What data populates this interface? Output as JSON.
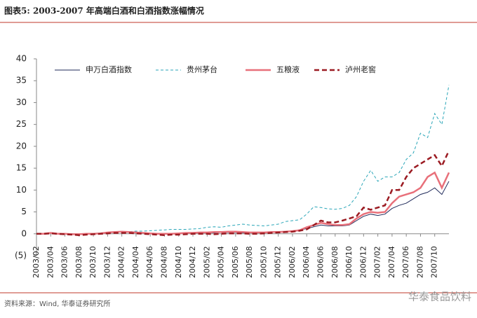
{
  "chart_data": {
    "type": "line",
    "title": "图表5:  2003-2007 年高端白酒和白酒指数涨幅情况",
    "source": "资料来源：Wind, 华泰证券研究所",
    "watermark": "华泰食品饮料",
    "categories": [
      "2003/02",
      null,
      "2003/04",
      null,
      "2003/06",
      null,
      "2003/08",
      null,
      "2003/10",
      null,
      "2003/12",
      null,
      "2004/02",
      null,
      "2004/04",
      null,
      "2004/06",
      null,
      "2004/08",
      null,
      "2004/10",
      null,
      "2004/12",
      null,
      "2005/02",
      null,
      "2005/04",
      null,
      "2005/06",
      null,
      "2005/08",
      null,
      "2005/10",
      null,
      "2005/12",
      null,
      "2006/02",
      null,
      "2006/04",
      null,
      "2006/06",
      null,
      "2006/08",
      null,
      "2006/10",
      null,
      "2006/12",
      null,
      "2007/02",
      null,
      "2007/04",
      null,
      "2007/06",
      null,
      "2007/08",
      null,
      "2007/10",
      null,
      null
    ],
    "series": [
      {
        "name": "申万白酒指数",
        "color": "#1f2a5a",
        "line_style": "solid",
        "values": [
          0,
          0,
          0.2,
          0.1,
          0,
          -0.1,
          -0.2,
          -0.1,
          0,
          0.1,
          0.2,
          0.3,
          0.4,
          0.3,
          0.3,
          0.2,
          0.1,
          0,
          0,
          0.1,
          0.1,
          0.2,
          0.2,
          0.3,
          0.3,
          0.2,
          0.3,
          0.3,
          0.3,
          0.2,
          0.2,
          0.3,
          0.3,
          0.4,
          0.4,
          0.5,
          0.6,
          0.8,
          1.2,
          1.6,
          2,
          1.8,
          1.8,
          1.8,
          2,
          3,
          4,
          4.5,
          4.2,
          4.5,
          5.8,
          6.5,
          7,
          8,
          9,
          9.5,
          10.5,
          9,
          12
        ]
      },
      {
        "name": "贵州茅台",
        "color": "#2aa6b8",
        "line_style": "dashed",
        "values": [
          0,
          0,
          0.2,
          0.1,
          0,
          0,
          -0.1,
          0,
          0.1,
          0.2,
          0.3,
          0.4,
          0.5,
          0.5,
          0.6,
          0.6,
          0.7,
          0.8,
          0.9,
          1,
          1,
          1,
          1.1,
          1.2,
          1.5,
          1.6,
          1.5,
          1.8,
          2,
          2.2,
          2,
          1.9,
          1.8,
          2,
          2.2,
          2.8,
          3,
          3.2,
          4.5,
          6.2,
          6,
          5.7,
          5.6,
          5.8,
          6.5,
          8.5,
          12,
          14.5,
          12,
          13,
          13,
          14,
          17,
          18.5,
          23,
          22,
          27.5,
          25,
          34
        ]
      },
      {
        "name": "五粮液",
        "color": "#e8707a",
        "line_style": "solid",
        "values": [
          0,
          0,
          0.2,
          0,
          0,
          -0.1,
          -0.1,
          0,
          0,
          0.1,
          0.3,
          0.4,
          0.5,
          0.4,
          0.3,
          0.2,
          0.1,
          0,
          0,
          0,
          0.1,
          0.2,
          0.2,
          0.3,
          0.3,
          0.4,
          0.4,
          0.5,
          0.5,
          0.4,
          0.3,
          0.3,
          0.3,
          0.4,
          0.4,
          0.5,
          0.6,
          0.8,
          1.5,
          2,
          2.5,
          2.2,
          2,
          2,
          2.2,
          3.5,
          4.5,
          5,
          4.8,
          5,
          7,
          8.5,
          9,
          9.5,
          10.5,
          13,
          14,
          10.5,
          14
        ]
      },
      {
        "name": "泸州老窖",
        "color": "#9b1b22",
        "line_style": "dashed",
        "values": [
          0,
          0,
          0.1,
          0,
          -0.1,
          -0.2,
          -0.3,
          -0.2,
          -0.1,
          0,
          0.1,
          0.2,
          0.2,
          0.2,
          0.1,
          0,
          -0.1,
          -0.2,
          -0.3,
          -0.2,
          -0.2,
          -0.1,
          0,
          0,
          0,
          -0.1,
          0,
          0.1,
          0.1,
          0.1,
          0,
          0,
          0.1,
          0.2,
          0.3,
          0.4,
          0.5,
          0.7,
          1,
          2,
          3,
          2.6,
          2.6,
          3,
          3.5,
          4,
          6,
          5.5,
          6,
          6.5,
          10,
          10,
          13,
          15,
          16,
          17,
          18,
          15.5,
          19
        ]
      }
    ],
    "ylim": [
      -5,
      40
    ],
    "yticks": [
      {
        "value": -5,
        "label": "(5)"
      },
      0,
      5,
      10,
      15,
      20,
      25,
      30,
      35,
      40
    ],
    "grid": false
  }
}
